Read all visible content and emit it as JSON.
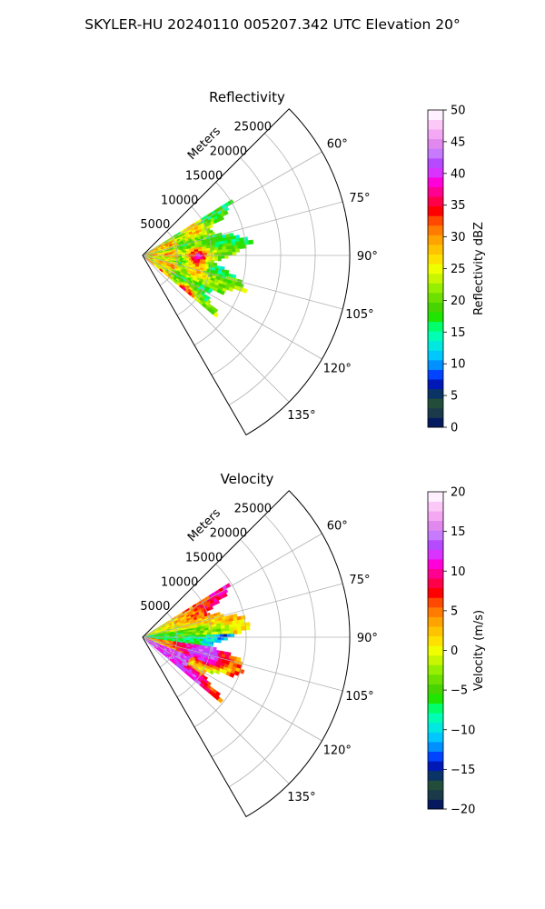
{
  "suptitle": "SKYLER-HU  20240110  005207.342 UTC Elevation 20°",
  "chart_data": [
    {
      "type": "heatmap",
      "projection": "polar-sector",
      "title": "Reflectivity",
      "range_label": "Meters",
      "azimuth_range": [
        45,
        150
      ],
      "azimuth_ticks": [
        60,
        75,
        90,
        105,
        120,
        135
      ],
      "azimuth_tick_labels": [
        "60°",
        "75°",
        "90°",
        "105°",
        "120°",
        "135°"
      ],
      "range_ticks": [
        5000,
        10000,
        15000,
        20000,
        25000
      ],
      "range_tick_labels": [
        "5000",
        "10000",
        "15000",
        "20000",
        "25000"
      ],
      "rmax": 30000,
      "grid": true,
      "data_coverage": {
        "azimuth": [
          58,
          130
        ],
        "range_max_approx": 14500
      },
      "colorbar": {
        "label": "Reflectivity dBZ",
        "vmin": 0,
        "vmax": 50,
        "ticks": [
          0,
          5,
          10,
          15,
          20,
          25,
          30,
          35,
          40,
          45,
          50
        ],
        "tick_labels": [
          "0",
          "5",
          "10",
          "15",
          "20",
          "25",
          "30",
          "35",
          "40",
          "45",
          "50"
        ],
        "colors": [
          "#051a5e",
          "#1a3a4a",
          "#234d3b",
          "#0a3366",
          "#0018b5",
          "#0044ff",
          "#0090ff",
          "#00c8ff",
          "#00e8e0",
          "#00ffb4",
          "#00ff6a",
          "#1fe500",
          "#48d400",
          "#6ee000",
          "#96ee00",
          "#c8f500",
          "#f0ff00",
          "#ffe100",
          "#ffc300",
          "#ffa300",
          "#ff7c00",
          "#ff4800",
          "#ff0000",
          "#ff0048",
          "#ff0090",
          "#ff00d8",
          "#d833ff",
          "#b64aff",
          "#c87aff",
          "#e088ee",
          "#f4a8f4",
          "#fbc8f8",
          "#fff0ff"
        ]
      }
    },
    {
      "type": "heatmap",
      "projection": "polar-sector",
      "title": "Velocity",
      "range_label": "Meters",
      "azimuth_range": [
        45,
        150
      ],
      "azimuth_ticks": [
        60,
        75,
        90,
        105,
        120,
        135
      ],
      "azimuth_tick_labels": [
        "60°",
        "75°",
        "90°",
        "105°",
        "120°",
        "135°"
      ],
      "range_ticks": [
        5000,
        10000,
        15000,
        20000,
        25000
      ],
      "range_tick_labels": [
        "5000",
        "10000",
        "15000",
        "20000",
        "25000"
      ],
      "rmax": 30000,
      "grid": true,
      "data_coverage": {
        "azimuth": [
          58,
          130
        ],
        "range_max_approx": 14500
      },
      "colorbar": {
        "label": "Velocity (m/s)",
        "vmin": -20,
        "vmax": 20,
        "ticks": [
          -20,
          -15,
          -10,
          -5,
          0,
          5,
          10,
          15,
          20
        ],
        "tick_labels": [
          "−20",
          "−15",
          "−10",
          "−5",
          "0",
          "5",
          "10",
          "15",
          "20"
        ],
        "colors": [
          "#051a5e",
          "#1a3a4a",
          "#234d3b",
          "#0a3366",
          "#0018b5",
          "#0044ff",
          "#0090ff",
          "#00c8ff",
          "#00e8e0",
          "#00ffb4",
          "#00ff6a",
          "#1fe500",
          "#48d400",
          "#6ee000",
          "#96ee00",
          "#c8f500",
          "#f0ff00",
          "#ffe100",
          "#ffc300",
          "#ffa300",
          "#ff7c00",
          "#ff4800",
          "#ff0000",
          "#ff0048",
          "#ff0090",
          "#ff00d8",
          "#d833ff",
          "#b64aff",
          "#c87aff",
          "#e088ee",
          "#f4a8f4",
          "#fbc8f8",
          "#fff0ff"
        ]
      }
    }
  ]
}
